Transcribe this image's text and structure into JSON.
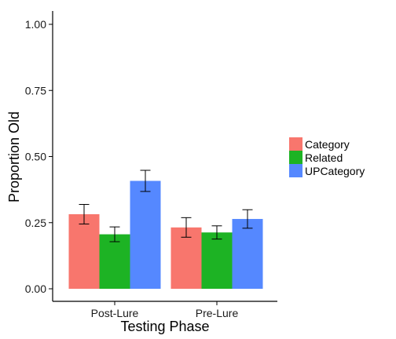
{
  "chart_data": {
    "type": "bar",
    "xlabel": "Testing Phase",
    "ylabel": "Proportion Old",
    "categories": [
      "Post-Lure",
      "Pre-Lure"
    ],
    "series": [
      {
        "name": "Category",
        "color": "#F8766D",
        "values": [
          0.282,
          0.232
        ],
        "errors": [
          0.037,
          0.037
        ]
      },
      {
        "name": "Related",
        "color": "#1DB324",
        "values": [
          0.206,
          0.213
        ],
        "errors": [
          0.028,
          0.025
        ]
      },
      {
        "name": "UPCategory",
        "color": "#5588FF",
        "values": [
          0.408,
          0.264
        ],
        "errors": [
          0.04,
          0.035
        ]
      }
    ],
    "ylim": [
      0,
      1.0
    ],
    "yticks": [
      0,
      0.25,
      0.5,
      0.75,
      1.0
    ],
    "ytick_labels": [
      "0.00",
      "0.25",
      "0.50",
      "0.75",
      "1.00"
    ],
    "grid": false,
    "legend_position": "right"
  }
}
